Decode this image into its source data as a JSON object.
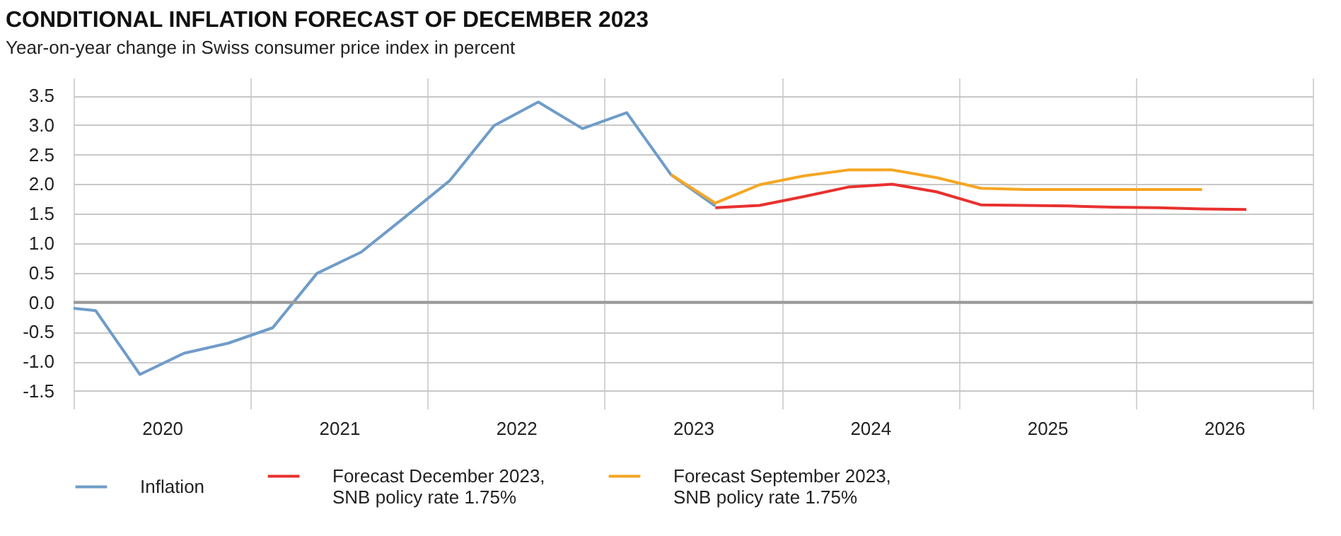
{
  "chart_data": {
    "type": "line",
    "title": "CONDITIONAL INFLATION FORECAST OF DECEMBER 2023",
    "subtitle": "Year-on-year change in Swiss consumer price index in percent",
    "xlim": [
      2020,
      2027
    ],
    "ylim": [
      -1.8,
      3.8
    ],
    "xticks": [
      {
        "value": 2020,
        "label": null
      },
      {
        "value": 2020.5,
        "label": "2020"
      },
      {
        "value": 2021,
        "label": null
      },
      {
        "value": 2021.5,
        "label": "2021"
      },
      {
        "value": 2022,
        "label": null
      },
      {
        "value": 2022.5,
        "label": "2022"
      },
      {
        "value": 2023,
        "label": null
      },
      {
        "value": 2023.5,
        "label": "2023"
      },
      {
        "value": 2024,
        "label": null
      },
      {
        "value": 2024.5,
        "label": "2024"
      },
      {
        "value": 2025,
        "label": null
      },
      {
        "value": 2025.5,
        "label": "2025"
      },
      {
        "value": 2026,
        "label": null
      },
      {
        "value": 2026.5,
        "label": "2026"
      },
      {
        "value": 2027,
        "label": null
      }
    ],
    "yticks": [
      {
        "value": -1.5,
        "label": "-1.5"
      },
      {
        "value": -1,
        "label": "-1.0"
      },
      {
        "value": -0.5,
        "label": "-0.5"
      },
      {
        "value": 0,
        "label": "0.0"
      },
      {
        "value": 0.5,
        "label": "0.5"
      },
      {
        "value": 1,
        "label": "1.0"
      },
      {
        "value": 1.5,
        "label": "1.5"
      },
      {
        "value": 2,
        "label": "2.0"
      },
      {
        "value": 2.5,
        "label": "2.5"
      },
      {
        "value": 3,
        "label": "3.0"
      },
      {
        "value": 3.5,
        "label": "3.5"
      }
    ],
    "grid": true,
    "legend": "bottom",
    "ref_lines": [
      {
        "axis": "y",
        "value": 0,
        "label": null,
        "color": "#9a9a9a"
      }
    ],
    "series": [
      {
        "name": "Inflation",
        "color": "#6f9cc9",
        "x": [
          2020,
          2020.125,
          2020.375,
          2020.625,
          2020.875,
          2021.125,
          2021.375,
          2021.625,
          2021.875,
          2022.125,
          2022.375,
          2022.625,
          2022.875,
          2023.125,
          2023.375,
          2023.625
        ],
        "values": [
          -0.1,
          -0.14,
          -1.22,
          -0.86,
          -0.69,
          -0.43,
          0.49,
          0.85,
          1.45,
          2.06,
          2.99,
          3.39,
          2.94,
          3.21,
          2.16,
          1.63
        ]
      },
      {
        "name": "Forecast December 2023, SNB policy rate 1.75%",
        "color": "#e8312f",
        "x": [
          2023.625,
          2023.875,
          2024.125,
          2024.375,
          2024.625,
          2024.875,
          2025.125,
          2025.375,
          2025.625,
          2025.875,
          2026.125,
          2026.375,
          2026.625
        ],
        "values": [
          1.6,
          1.64,
          1.79,
          1.95,
          2.0,
          1.87,
          1.65,
          1.64,
          1.63,
          1.61,
          1.6,
          1.58,
          1.57
        ]
      },
      {
        "name": "Forecast September 2023, SNB policy rate 1.75%",
        "color": "#f5a623",
        "x": [
          2023.375,
          2023.625,
          2023.875,
          2024.125,
          2024.375,
          2024.625,
          2024.875,
          2025.125,
          2025.375,
          2025.625,
          2025.875,
          2026.125,
          2026.375
        ],
        "values": [
          2.16,
          1.68,
          1.99,
          2.14,
          2.24,
          2.24,
          2.11,
          1.93,
          1.91,
          1.91,
          1.91,
          1.91,
          1.91
        ]
      }
    ]
  }
}
